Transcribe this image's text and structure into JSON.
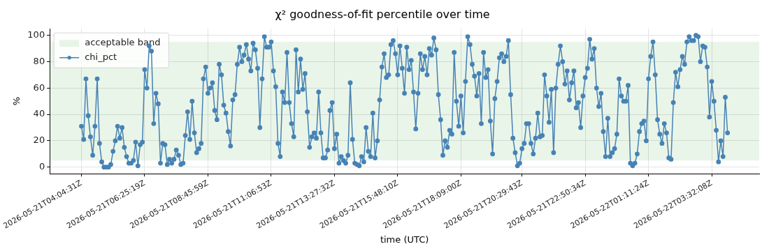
{
  "chart_data": {
    "type": "line",
    "title": "χ² goodness-of-fit percentile over time",
    "xlabel": "time (UTC)",
    "ylabel": "%",
    "categories": [
      "2026-05-21T04:04:31Z",
      null,
      null,
      null,
      null,
      null,
      null,
      null,
      null,
      null,
      null,
      null,
      null,
      null,
      null,
      null,
      null,
      null,
      null,
      null,
      null,
      null,
      null,
      null,
      null,
      null,
      null,
      null,
      "2026-05-21T06:25:19Z",
      null,
      null,
      null,
      null,
      null,
      null,
      null,
      null,
      null,
      null,
      null,
      null,
      null,
      null,
      null,
      null,
      null,
      null,
      null,
      null,
      null,
      null,
      null,
      null,
      null,
      null,
      null,
      "2026-05-21T08:45:59Z",
      null,
      null,
      null,
      null,
      null,
      null,
      null,
      null,
      null,
      null,
      null,
      null,
      null,
      null,
      null,
      null,
      null,
      null,
      null,
      null,
      null,
      null,
      null,
      null,
      null,
      null,
      null,
      "2026-05-21T11:06:53Z",
      null,
      null,
      null,
      null,
      null,
      null,
      null,
      null,
      null,
      null,
      null,
      null,
      null,
      null,
      null,
      null,
      null,
      null,
      null,
      null,
      null,
      null,
      null,
      null,
      null,
      null,
      null,
      "2026-05-21T13:27:32Z",
      null,
      null,
      null,
      null,
      null,
      null,
      null,
      null,
      null,
      null,
      null,
      null,
      null,
      null,
      null,
      null,
      null,
      null,
      null,
      null,
      null,
      null,
      null,
      null,
      null,
      null,
      null,
      "2026-05-21T15:48:10Z",
      null,
      null,
      null,
      null,
      null,
      null,
      null,
      null,
      null,
      null,
      null,
      null,
      null,
      null,
      null,
      null,
      null,
      null,
      null,
      null,
      null,
      null,
      null,
      null,
      null,
      null,
      null,
      "2026-05-21T18:09:00Z",
      null,
      null,
      null,
      null,
      null,
      null,
      null,
      null,
      null,
      null,
      null,
      null,
      null,
      null,
      null,
      null,
      null,
      null,
      null,
      null,
      null,
      null,
      null,
      null,
      null,
      null,
      "2026-05-21T20:29:43Z",
      null,
      null,
      null,
      null,
      null,
      null,
      null,
      null,
      null,
      null,
      null,
      null,
      null,
      null,
      null,
      null,
      null,
      null,
      null,
      null,
      null,
      null,
      null,
      null,
      null,
      null,
      null,
      "2026-05-21T22:50:34Z",
      null,
      null,
      null,
      null,
      null,
      null,
      null,
      null,
      null,
      null,
      null,
      null,
      null,
      null,
      null,
      null,
      null,
      null,
      null,
      null,
      null,
      null,
      null,
      null,
      null,
      null,
      null,
      "2026-05-22T01:11:24Z",
      null,
      null,
      null,
      null,
      null,
      null,
      null,
      null,
      null,
      null,
      null,
      null,
      null,
      null,
      null,
      null,
      null,
      null,
      null,
      null,
      null,
      null,
      null,
      null,
      null,
      null,
      null,
      "2026-05-22T03:32:08Z",
      null,
      null,
      null,
      null,
      null,
      null,
      null
    ],
    "series": [
      {
        "name": "chi_pct",
        "color": "#4682b4",
        "values": [
          31,
          21,
          67,
          39,
          23,
          9,
          31,
          67,
          18,
          4,
          0,
          0,
          0,
          2,
          12,
          20,
          31,
          22,
          30,
          15,
          8,
          3,
          3,
          5,
          19,
          1,
          17,
          19,
          74,
          60,
          92,
          88,
          33,
          56,
          48,
          3,
          18,
          17,
          2,
          6,
          3,
          6,
          13,
          9,
          2,
          3,
          24,
          42,
          21,
          50,
          26,
          11,
          14,
          18,
          67,
          76,
          56,
          60,
          64,
          43,
          36,
          78,
          70,
          47,
          41,
          27,
          16,
          51,
          55,
          78,
          91,
          80,
          85,
          93,
          82,
          73,
          94,
          89,
          75,
          30,
          67,
          99,
          91,
          91,
          95,
          73,
          61,
          18,
          8,
          57,
          49,
          87,
          49,
          33,
          23,
          89,
          57,
          82,
          59,
          71,
          42,
          15,
          23,
          26,
          22,
          57,
          26,
          7,
          7,
          13,
          43,
          49,
          14,
          25,
          3,
          8,
          5,
          3,
          9,
          64,
          21,
          3,
          2,
          1,
          8,
          4,
          30,
          12,
          8,
          41,
          7,
          20,
          51,
          76,
          86,
          68,
          70,
          93,
          96,
          86,
          70,
          92,
          75,
          56,
          91,
          74,
          81,
          57,
          29,
          56,
          86,
          74,
          84,
          70,
          90,
          85,
          98,
          89,
          55,
          36,
          9,
          20,
          15,
          28,
          25,
          87,
          50,
          31,
          54,
          26,
          65,
          99,
          93,
          78,
          69,
          54,
          71,
          33,
          87,
          68,
          74,
          35,
          10,
          52,
          65,
          83,
          86,
          80,
          84,
          96,
          55,
          22,
          11,
          1,
          3,
          14,
          18,
          33,
          33,
          18,
          10,
          22,
          41,
          23,
          24,
          70,
          54,
          34,
          59,
          11,
          60,
          78,
          92,
          80,
          63,
          73,
          51,
          64,
          73,
          45,
          49,
          30,
          54,
          68,
          75,
          97,
          82,
          90,
          60,
          46,
          56,
          27,
          8,
          37,
          8,
          11,
          14,
          25,
          67,
          54,
          50,
          50,
          62,
          3,
          1,
          3,
          10,
          27,
          33,
          35,
          20,
          67,
          84,
          95,
          70,
          36,
          25,
          18,
          33,
          26,
          7,
          6,
          49,
          72,
          61,
          74,
          84,
          78,
          95,
          99,
          96,
          96,
          100,
          99,
          80,
          92,
          91,
          76,
          38,
          65,
          50,
          28,
          4,
          20,
          8,
          53,
          26
        ]
      }
    ],
    "ylim": [
      -5,
      105
    ],
    "yticks": [
      0,
      20,
      40,
      60,
      80,
      100
    ],
    "bands": [
      {
        "axis": "y",
        "from": 5,
        "to": 95,
        "label": "acceptable band",
        "color": "#2ca02c"
      }
    ],
    "grid": true,
    "legend": "top left",
    "marker": "circle",
    "line_style": "solid"
  }
}
